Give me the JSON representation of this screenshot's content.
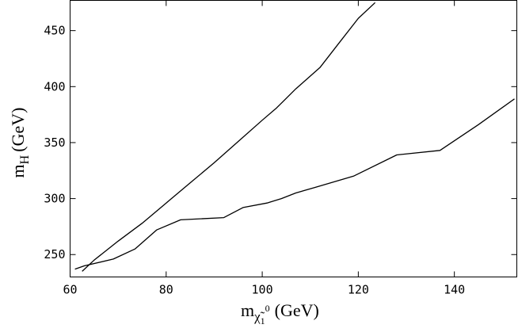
{
  "chart_data": {
    "type": "line",
    "title": "",
    "xlabel": {
      "main": "m",
      "subscript": "χ̃",
      "sub_sub": "1",
      "superscript": "0",
      "unit": "(GeV)"
    },
    "ylabel": {
      "main": "m",
      "subscript": "H",
      "unit": "(GeV)"
    },
    "xlim": [
      60,
      153
    ],
    "ylim": [
      230,
      477
    ],
    "xticks": [
      60,
      80,
      100,
      120,
      140
    ],
    "yticks": [
      250,
      300,
      350,
      400,
      450
    ],
    "grid": false,
    "legend": "none",
    "series": [
      {
        "x": [
          62.5,
          65,
          70,
          75,
          80,
          85,
          90,
          95,
          100,
          103,
          107,
          112,
          116,
          120,
          123.5
        ],
        "y": [
          235,
          245,
          262,
          278,
          296,
          314,
          332,
          351,
          370,
          381,
          398,
          417,
          439,
          461,
          475
        ]
      },
      {
        "x": [
          61,
          63,
          69,
          73.5,
          78,
          83,
          92,
          96,
          101,
          104,
          107,
          111,
          119,
          128,
          137,
          145,
          152.5
        ],
        "y": [
          237,
          240,
          246,
          255,
          272,
          281,
          283,
          292,
          296,
          300,
          305,
          310,
          320,
          339,
          343,
          366,
          389
        ]
      }
    ],
    "colors": {
      "line": "#000000",
      "frame": "#000000",
      "background": "#ffffff"
    }
  }
}
